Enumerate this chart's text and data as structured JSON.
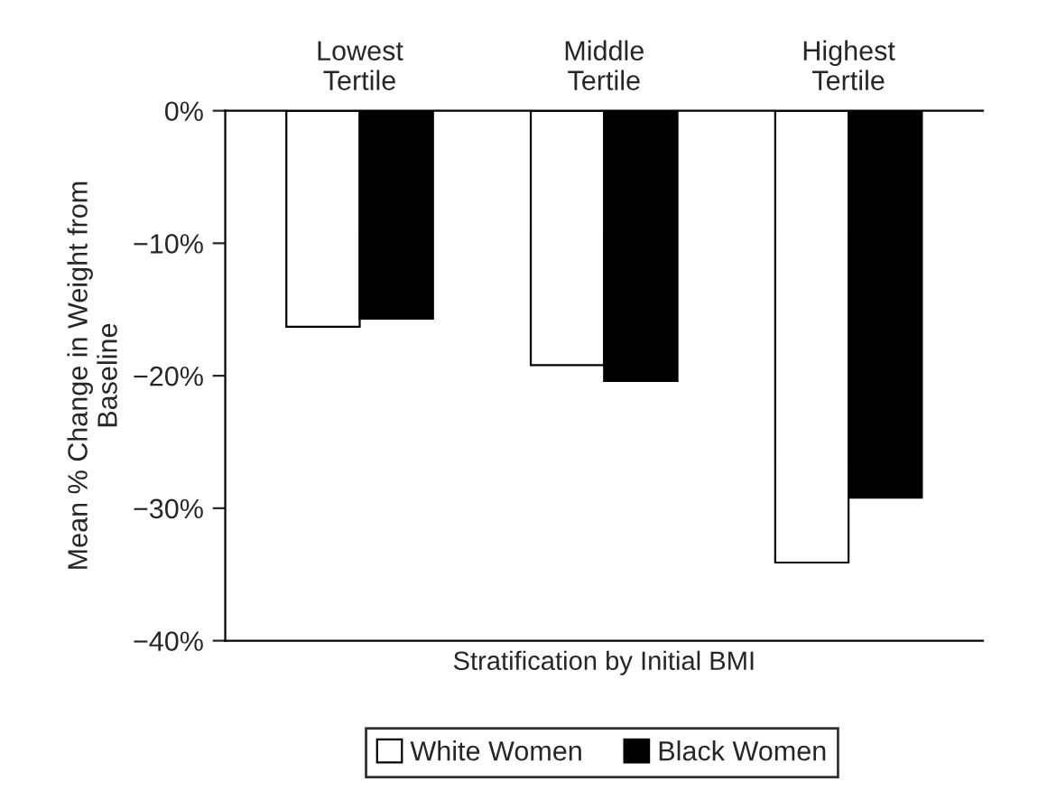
{
  "chart_data": {
    "type": "bar",
    "categories": [
      "Lowest\nTertile",
      "Middle\nTertile",
      "Highest\nTertile"
    ],
    "series": [
      {
        "name": "White Women",
        "color": "#ffffff",
        "values": [
          -16.3,
          -19.2,
          -34.1
        ]
      },
      {
        "name": "Black Women",
        "color": "#000000",
        "values": [
          -15.7,
          -20.4,
          -29.2
        ]
      }
    ],
    "xlabel": "Stratification by Initial BMI",
    "ylabel": "Mean % Change in Weight from\nBaseline",
    "ylim": [
      -40,
      0
    ],
    "yticks": [
      {
        "value": -40,
        "label": "−40%"
      },
      {
        "value": -30,
        "label": "−30%"
      },
      {
        "value": -20,
        "label": "−20%"
      },
      {
        "value": -10,
        "label": "−10%"
      },
      {
        "value": 0,
        "label": "0%"
      }
    ],
    "grid": false,
    "legend": "bottom"
  }
}
